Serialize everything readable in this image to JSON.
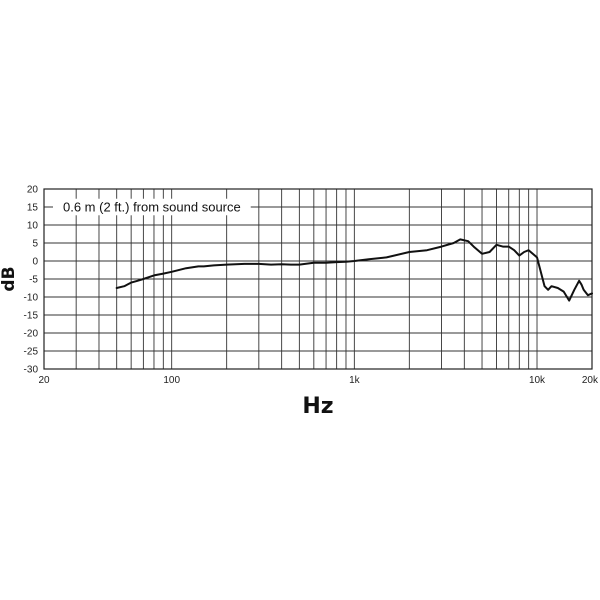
{
  "chart_data": {
    "type": "line",
    "xscale": "log",
    "xlim": [
      20,
      20000
    ],
    "ylim": [
      -30,
      20
    ],
    "xlabel": "Hz",
    "ylabel": "dB",
    "annotation": "0.6 m (2 ft.) from sound source",
    "grid": true,
    "yticks": [
      20,
      15,
      10,
      5,
      0,
      -5,
      -10,
      -15,
      -20,
      -25,
      -30
    ],
    "xticks": [
      {
        "value": 20,
        "label": "20"
      },
      {
        "value": 100,
        "label": "100"
      },
      {
        "value": 1000,
        "label": "1k"
      },
      {
        "value": 10000,
        "label": "10k"
      },
      {
        "value": 20000,
        "label": "20k"
      }
    ],
    "x_gridlines": [
      20,
      30,
      40,
      50,
      60,
      70,
      80,
      90,
      100,
      200,
      300,
      400,
      500,
      600,
      700,
      800,
      900,
      1000,
      2000,
      3000,
      4000,
      5000,
      6000,
      7000,
      8000,
      9000,
      10000,
      20000
    ],
    "series": [
      {
        "x": [
          50,
          55,
          60,
          65,
          70,
          80,
          90,
          100,
          120,
          140,
          150,
          170,
          200,
          250,
          300,
          350,
          400,
          450,
          500,
          600,
          700,
          800,
          900,
          1000,
          1200,
          1500,
          2000,
          2500,
          3000,
          3500,
          3800,
          4200,
          4500,
          5000,
          5500,
          6000,
          6500,
          7000,
          7500,
          8000,
          8500,
          9000,
          10000,
          11000,
          11500,
          12000,
          13000,
          14000,
          15000,
          16000,
          17000,
          17500,
          18000,
          19000,
          20000
        ],
        "y": [
          -7.5,
          -7,
          -6,
          -5.5,
          -5,
          -4,
          -3.5,
          -3,
          -2,
          -1.5,
          -1.5,
          -1.2,
          -1,
          -0.8,
          -0.8,
          -1,
          -0.9,
          -1,
          -1,
          -0.5,
          -0.5,
          -0.3,
          -0.2,
          0,
          0.5,
          1,
          2.5,
          3,
          4,
          5,
          6,
          5.5,
          4,
          2,
          2.5,
          4.5,
          4,
          4,
          3,
          1.5,
          2.5,
          3,
          1,
          -7,
          -8,
          -7,
          -7.5,
          -8.5,
          -11,
          -8,
          -5.5,
          -6.5,
          -8,
          -9.5,
          -9
        ]
      }
    ]
  }
}
